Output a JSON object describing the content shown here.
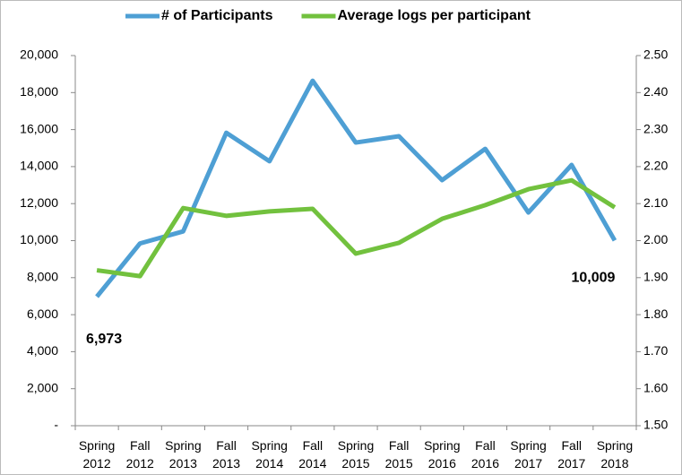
{
  "chart_data": {
    "type": "line",
    "categories": [
      "Spring 2012",
      "Fall 2012",
      "Spring 2013",
      "Fall 2013",
      "Spring 2014",
      "Fall 2014",
      "Spring 2015",
      "Fall 2015",
      "Spring 2016",
      "Fall 2016",
      "Spring 2017",
      "Fall 2017",
      "Spring 2018"
    ],
    "series": [
      {
        "name": "# of Participants",
        "color": "#4e9fd4",
        "axis": "y",
        "values": [
          6973,
          9850,
          10500,
          15830,
          14290,
          18640,
          15300,
          15640,
          13270,
          14960,
          11520,
          14090,
          10009
        ],
        "value_labels": [
          "6,973",
          null,
          null,
          null,
          null,
          null,
          null,
          null,
          null,
          null,
          null,
          null,
          "10,009"
        ]
      },
      {
        "name": "Average logs per participant",
        "color": "#72c13e",
        "axis": "y2",
        "values": [
          1.92,
          1.904,
          2.088,
          2.067,
          2.079,
          2.086,
          1.965,
          1.994,
          2.059,
          2.096,
          2.139,
          2.163,
          2.09
        ],
        "value_labels": [
          null,
          null,
          null,
          null,
          null,
          null,
          null,
          null,
          null,
          null,
          null,
          null,
          null
        ]
      }
    ],
    "ylim": [
      0,
      20000
    ],
    "yticks": [
      {
        "value": 0,
        "label": "-"
      },
      {
        "value": 2000,
        "label": "2,000"
      },
      {
        "value": 4000,
        "label": "4,000"
      },
      {
        "value": 6000,
        "label": "6,000"
      },
      {
        "value": 8000,
        "label": "8,000"
      },
      {
        "value": 10000,
        "label": "10,000"
      },
      {
        "value": 12000,
        "label": "12,000"
      },
      {
        "value": 14000,
        "label": "14,000"
      },
      {
        "value": 16000,
        "label": "16,000"
      },
      {
        "value": 18000,
        "label": "18,000"
      },
      {
        "value": 20000,
        "label": "20,000"
      }
    ],
    "y2lim": [
      1.5,
      2.5
    ],
    "y2ticks": [
      {
        "value": 1.5,
        "label": "1.50"
      },
      {
        "value": 1.6,
        "label": "1.60"
      },
      {
        "value": 1.7,
        "label": "1.70"
      },
      {
        "value": 1.8,
        "label": "1.80"
      },
      {
        "value": 1.9,
        "label": "1.90"
      },
      {
        "value": 2.0,
        "label": "2.00"
      },
      {
        "value": 2.1,
        "label": "2.10"
      },
      {
        "value": 2.2,
        "label": "2.20"
      },
      {
        "value": 2.3,
        "label": "2.30"
      },
      {
        "value": 2.4,
        "label": "2.40"
      },
      {
        "value": 2.5,
        "label": "2.50"
      }
    ],
    "grid": false,
    "legend": "top"
  }
}
